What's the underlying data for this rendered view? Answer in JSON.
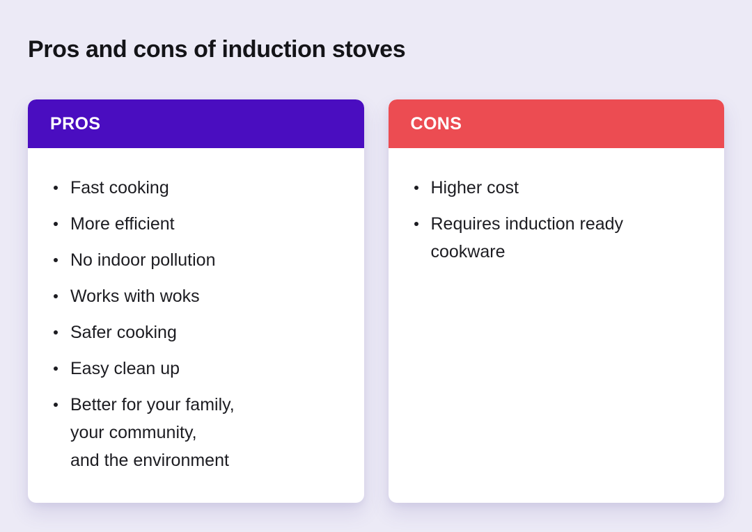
{
  "title": "Pros and cons of induction stoves",
  "colors": {
    "background": "#ECEAF6",
    "card_background": "#FFFFFF",
    "title_text": "#141418",
    "item_text": "#1C1C21",
    "header_text": "#FFFFFF",
    "pros_accent": "#4A0DC0",
    "cons_accent": "#EC4C52"
  },
  "cards": [
    {
      "label": "PROS",
      "accent": "#4A0DC0",
      "items": [
        "Fast cooking",
        "More efficient",
        "No indoor pollution",
        "Works with woks",
        "Safer cooking",
        "Easy clean up",
        "Better for your family,\nyour community,\nand the environment"
      ]
    },
    {
      "label": "CONS",
      "accent": "#EC4C52",
      "items": [
        "Higher cost",
        "Requires induction ready cookware"
      ]
    }
  ]
}
